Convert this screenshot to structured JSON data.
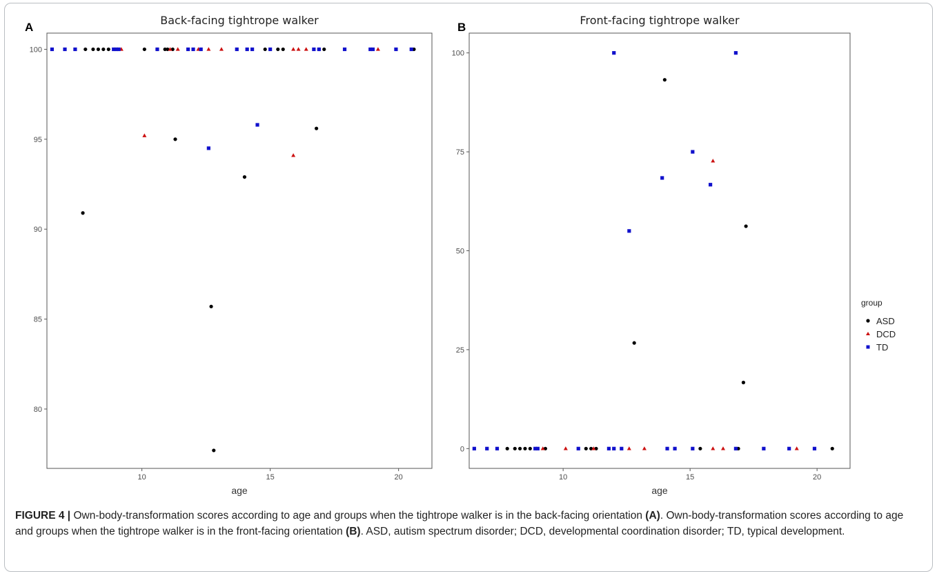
{
  "colors": {
    "ASD": "#000000",
    "DCD": "#cc1111",
    "TD": "#1111cc"
  },
  "legend": {
    "title": "group",
    "entries": [
      {
        "label": "ASD",
        "shape": "circle",
        "color": "#000000"
      },
      {
        "label": "DCD",
        "shape": "triangle",
        "color": "#cc1111"
      },
      {
        "label": "TD",
        "shape": "square",
        "color": "#1111cc"
      }
    ]
  },
  "caption": {
    "figure_label": "FIGURE 4 |",
    "text1": " Own-body-transformation scores according to age and groups when the tightrope walker is in the back-facing orientation ",
    "ref_a": "(A)",
    "text2": ". Own-body-transformation scores according to age and groups when the tightrope walker is in the front-facing orientation ",
    "ref_b": "(B)",
    "text3": ". ASD, autism spectrum disorder; DCD, developmental coordination disorder; TD, typical development."
  },
  "chart_data": [
    {
      "panel": "A",
      "type": "scatter",
      "title": "Back-facing tightrope walker",
      "xlabel": "age",
      "ylabel": "",
      "xlim": [
        6.3,
        21.3
      ],
      "ylim": [
        76.7,
        100.9
      ],
      "xticks": [
        10,
        15,
        20
      ],
      "yticks": [
        80,
        85,
        90,
        95,
        100
      ],
      "grid": false,
      "series": [
        {
          "name": "ASD",
          "points": [
            [
              7.8,
              100
            ],
            [
              8.1,
              100
            ],
            [
              8.3,
              100
            ],
            [
              8.5,
              100
            ],
            [
              8.7,
              100
            ],
            [
              10.1,
              100
            ],
            [
              10.6,
              100
            ],
            [
              10.9,
              100
            ],
            [
              11.0,
              100
            ],
            [
              11.2,
              100
            ],
            [
              14.8,
              100
            ],
            [
              15.3,
              100
            ],
            [
              15.5,
              100
            ],
            [
              16.9,
              100
            ],
            [
              17.1,
              100
            ],
            [
              20.6,
              100
            ],
            [
              7.7,
              90.9
            ],
            [
              11.3,
              95.0
            ],
            [
              12.7,
              85.7
            ],
            [
              12.8,
              77.7
            ],
            [
              14.0,
              92.9
            ],
            [
              16.8,
              95.6
            ]
          ]
        },
        {
          "name": "DCD",
          "points": [
            [
              9.2,
              100
            ],
            [
              11.1,
              100
            ],
            [
              11.4,
              100
            ],
            [
              12.2,
              100
            ],
            [
              12.6,
              100
            ],
            [
              13.1,
              100
            ],
            [
              15.9,
              100
            ],
            [
              16.1,
              100
            ],
            [
              16.4,
              100
            ],
            [
              19.2,
              100
            ],
            [
              10.1,
              95.2
            ],
            [
              15.9,
              94.1
            ]
          ]
        },
        {
          "name": "TD",
          "points": [
            [
              6.5,
              100
            ],
            [
              7.0,
              100
            ],
            [
              7.4,
              100
            ],
            [
              8.9,
              100
            ],
            [
              9.0,
              100
            ],
            [
              9.1,
              100
            ],
            [
              10.6,
              100
            ],
            [
              11.8,
              100
            ],
            [
              12.0,
              100
            ],
            [
              12.3,
              100
            ],
            [
              13.7,
              100
            ],
            [
              14.1,
              100
            ],
            [
              14.3,
              100
            ],
            [
              15.0,
              100
            ],
            [
              16.7,
              100
            ],
            [
              16.9,
              100
            ],
            [
              17.9,
              100
            ],
            [
              18.9,
              100
            ],
            [
              19.0,
              100
            ],
            [
              19.9,
              100
            ],
            [
              20.5,
              100
            ],
            [
              12.6,
              94.5
            ],
            [
              14.5,
              95.8
            ]
          ]
        }
      ]
    },
    {
      "panel": "B",
      "type": "scatter",
      "title": "Front-facing tightrope walker",
      "xlabel": "age",
      "ylabel": "",
      "xlim": [
        6.3,
        21.3
      ],
      "ylim": [
        -5,
        105
      ],
      "xticks": [
        10,
        15,
        20
      ],
      "yticks": [
        0,
        25,
        50,
        75,
        100
      ],
      "grid": false,
      "series": [
        {
          "name": "ASD",
          "points": [
            [
              7.8,
              0
            ],
            [
              8.1,
              0
            ],
            [
              8.3,
              0
            ],
            [
              8.5,
              0
            ],
            [
              8.7,
              0
            ],
            [
              9.3,
              0
            ],
            [
              10.9,
              0
            ],
            [
              11.1,
              0
            ],
            [
              11.3,
              0
            ],
            [
              15.4,
              0
            ],
            [
              16.9,
              0
            ],
            [
              20.6,
              0
            ],
            [
              14.0,
              93.2
            ],
            [
              12.8,
              26.7
            ],
            [
              17.2,
              56.2
            ],
            [
              17.1,
              16.7
            ]
          ]
        },
        {
          "name": "DCD",
          "points": [
            [
              9.2,
              0
            ],
            [
              10.1,
              0
            ],
            [
              11.2,
              0
            ],
            [
              12.6,
              0
            ],
            [
              13.2,
              0
            ],
            [
              15.9,
              0
            ],
            [
              16.3,
              0
            ],
            [
              19.2,
              0
            ],
            [
              15.9,
              72.7
            ]
          ]
        },
        {
          "name": "TD",
          "points": [
            [
              6.5,
              0
            ],
            [
              7.0,
              0
            ],
            [
              7.4,
              0
            ],
            [
              8.9,
              0
            ],
            [
              9.0,
              0
            ],
            [
              10.6,
              0
            ],
            [
              11.8,
              0
            ],
            [
              12.0,
              0
            ],
            [
              12.3,
              0
            ],
            [
              14.1,
              0
            ],
            [
              14.4,
              0
            ],
            [
              15.1,
              0
            ],
            [
              16.8,
              0
            ],
            [
              17.9,
              0
            ],
            [
              18.9,
              0
            ],
            [
              19.9,
              0
            ],
            [
              12.0,
              100
            ],
            [
              16.8,
              100
            ],
            [
              15.1,
              75.0
            ],
            [
              13.9,
              68.4
            ],
            [
              15.8,
              66.7
            ],
            [
              12.6,
              55.0
            ]
          ]
        }
      ]
    }
  ]
}
